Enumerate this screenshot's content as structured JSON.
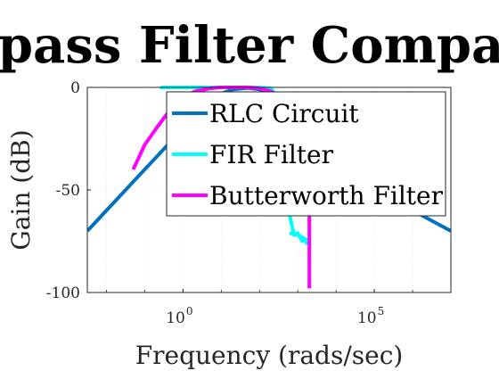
{
  "chart_data": {
    "type": "line",
    "title": "Bandpass Filter Comparison",
    "xlabel": "Frequency (rads/sec)",
    "ylabel": "Gain (dB)",
    "x_scale": "log",
    "xlim": [
      0.003162,
      10000000
    ],
    "ylim": [
      -100,
      0
    ],
    "x_ticks": [
      {
        "value": 1,
        "label_base": "10",
        "label_exp": "0"
      },
      {
        "value": 100000,
        "label_base": "10",
        "label_exp": "5"
      }
    ],
    "y_ticks": [
      {
        "value": 0,
        "label": "0"
      },
      {
        "value": -50,
        "label": "-50"
      },
      {
        "value": -100,
        "label": "-100"
      }
    ],
    "grid": true,
    "legend_position": "top-right",
    "series": [
      {
        "name": "RLC Circuit",
        "color": "#0072BD",
        "x": [
          0.003162,
          0.01,
          0.03,
          0.05,
          0.1,
          0.2,
          0.5,
          1,
          2,
          5,
          10,
          20,
          50,
          100,
          500,
          1000,
          5000,
          10000,
          100000,
          1000000,
          10000000
        ],
        "y": [
          -70,
          -60,
          -50.5,
          -46,
          -40,
          -34,
          -26,
          -20,
          -14,
          -7,
          -3,
          -1,
          -0.3,
          -1,
          -6,
          -10,
          -20,
          -26,
          -46,
          -60,
          -70
        ]
      },
      {
        "name": "FIR Filter",
        "color": "#00FFFF",
        "x": [
          0.25,
          0.3,
          0.5,
          1,
          5,
          20,
          60,
          100,
          200,
          250,
          300,
          500,
          800,
          1000,
          1300,
          1500,
          1700,
          2000,
          1000,
          600
        ],
        "y": [
          -0.3,
          0,
          0,
          0,
          0,
          0,
          0,
          0,
          -0.5,
          -3,
          -20,
          -55,
          -72,
          -71,
          -75,
          -74,
          -76,
          -75,
          -72,
          -71
        ]
      },
      {
        "name": "Butterworth Filter",
        "color": "#FF00FF",
        "x": [
          0.05,
          0.1,
          0.2,
          0.5,
          1,
          2,
          5,
          10,
          20,
          50,
          100,
          200,
          500,
          1000,
          1500,
          2000,
          2000
        ],
        "y": [
          -40,
          -28,
          -20,
          -10,
          -5,
          -2,
          -0.5,
          0,
          0,
          0,
          -0.5,
          -2,
          -6,
          -10,
          -13,
          -14,
          -98
        ]
      }
    ]
  }
}
